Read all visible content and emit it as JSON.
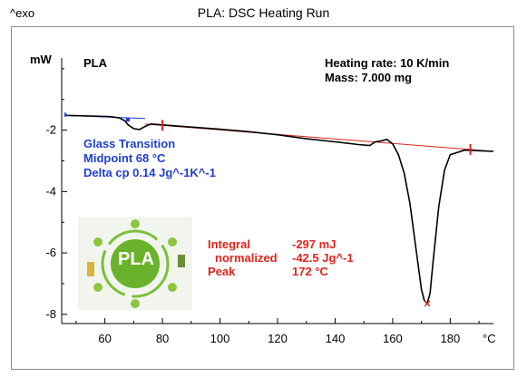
{
  "header": {
    "exo_label": "^exo",
    "title": "PLA: DSC Heating Run"
  },
  "sample": "PLA",
  "conditions": {
    "heating_rate": "Heating rate: 10 K/min",
    "mass": "Mass: 7.000 mg"
  },
  "glass_transition": {
    "title": "Glass Transition",
    "midpoint": "Midpoint 68 °C",
    "delta_cp": "Delta cp 0.14 Jg^-1K^-1"
  },
  "melting": {
    "integral_label": "Integral",
    "integral_value": "-297 mJ",
    "normalized_label": "normalized",
    "normalized_value": "-42.5 Jg^-1",
    "peak_label": "Peak",
    "peak_value": "172 °C"
  },
  "logo": {
    "text": "PLA",
    "icon": "pla-biodegradable-cycle-logo"
  },
  "colors": {
    "curve": "#000000",
    "glass_annotation": "#1f3fd6",
    "melt_annotation": "#e1231b",
    "logo_green": "#6fb52c"
  },
  "chart_data": {
    "type": "line",
    "title": "PLA: DSC Heating Run",
    "xlabel": "",
    "x_unit": "°C",
    "ylabel": "mW",
    "y_direction_label": "^exo",
    "xlim": [
      45,
      195
    ],
    "ylim": [
      -8.3,
      0.35
    ],
    "xticks": [
      60,
      80,
      100,
      120,
      140,
      160,
      180
    ],
    "yticks": [
      -2,
      -4,
      -6,
      -8
    ],
    "grid": false,
    "series": [
      {
        "name": "",
        "x": [
          46,
          55,
          62,
          65,
          67,
          68,
          70,
          72,
          74,
          76,
          80,
          90,
          100,
          110,
          120,
          130,
          140,
          148,
          152,
          154,
          156,
          158,
          160,
          162,
          164,
          166,
          168,
          170,
          171,
          172,
          173,
          174,
          176,
          178,
          180,
          185,
          190,
          195
        ],
        "y": [
          -1.52,
          -1.54,
          -1.56,
          -1.6,
          -1.7,
          -1.82,
          -1.95,
          -1.98,
          -1.88,
          -1.8,
          -1.83,
          -1.9,
          -1.97,
          -2.05,
          -2.15,
          -2.28,
          -2.38,
          -2.47,
          -2.5,
          -2.38,
          -2.35,
          -2.3,
          -2.45,
          -2.8,
          -3.4,
          -4.4,
          -5.8,
          -7.2,
          -7.55,
          -7.65,
          -7.3,
          -6.3,
          -4.5,
          -3.3,
          -2.8,
          -2.65,
          -2.67,
          -2.69
        ]
      }
    ],
    "annotations": {
      "glass_transition_midpoint": 68,
      "baseline_markers": [
        80,
        187
      ],
      "peak_marker": {
        "x": 172,
        "y": -7.65
      }
    }
  }
}
